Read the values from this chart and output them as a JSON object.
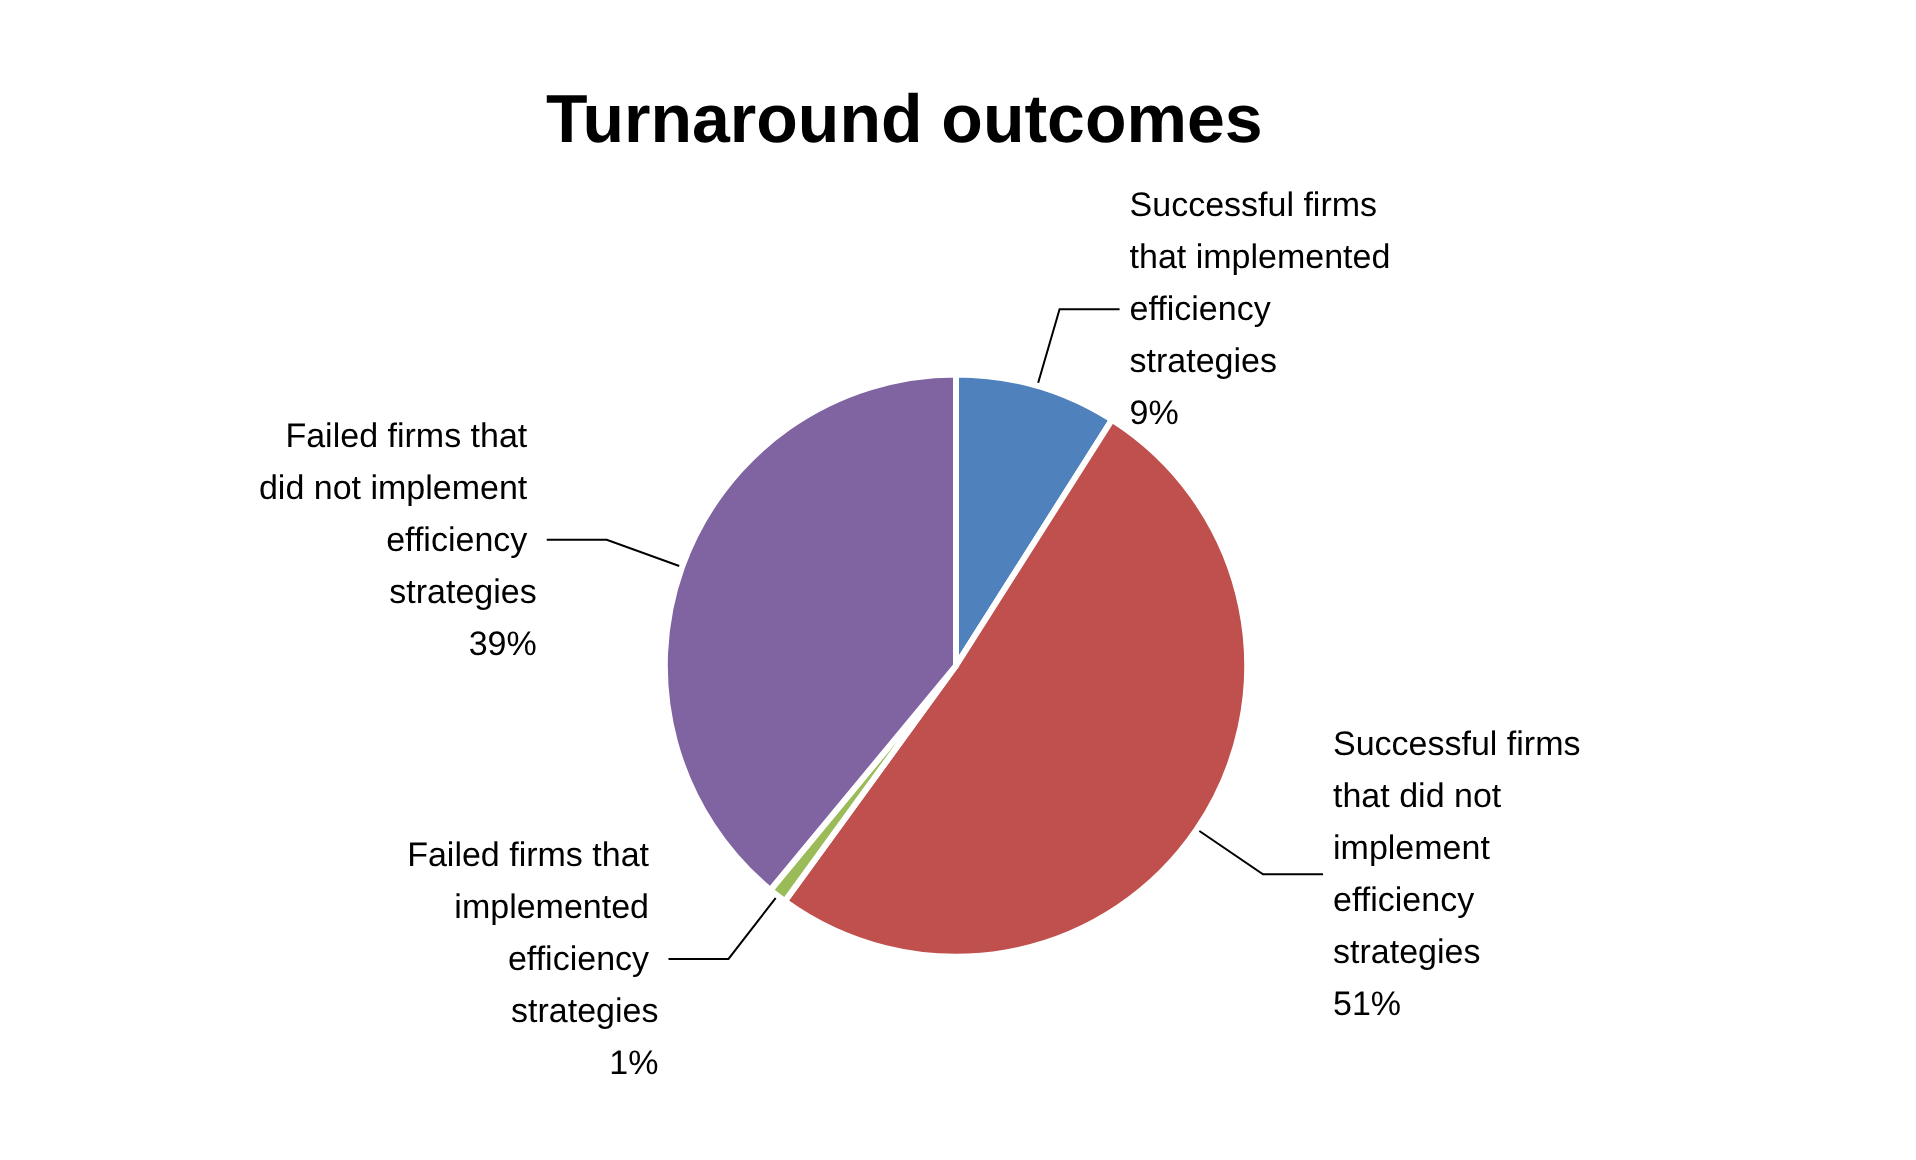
{
  "chart_data": {
    "type": "pie",
    "title": "Turnaround outcomes",
    "categories": [
      "Successful firms that implemented efficiency strategies",
      "Successful firms that did not implement efficiency strategies",
      "Failed firms that implemented efficiency strategies",
      "Failed firms that did not implement efficiency strategies"
    ],
    "values": [
      9,
      51,
      1,
      39
    ],
    "value_labels": [
      "9%",
      "51%",
      "1%",
      "39%"
    ],
    "colors": [
      "#4f81bd",
      "#c0504d",
      "#9bbb59",
      "#8064a2"
    ],
    "legend": false
  }
}
